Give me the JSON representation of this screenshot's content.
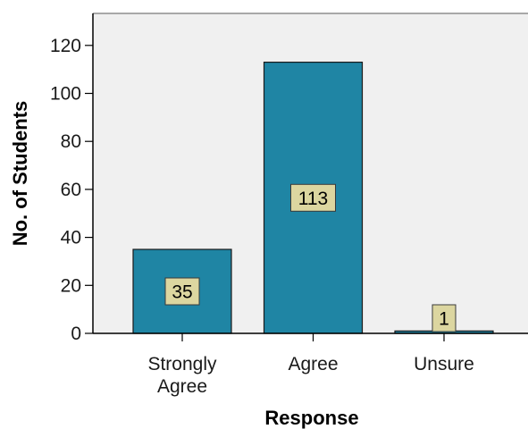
{
  "chart_data": {
    "type": "bar",
    "categories": [
      [
        "Strongly",
        "Agree"
      ],
      [
        "Agree"
      ],
      [
        "Unsure"
      ]
    ],
    "values": [
      35,
      113,
      1
    ],
    "data_labels": [
      "35",
      "113",
      "1"
    ],
    "title": "",
    "xlabel": "Response",
    "ylabel": "No. of Students",
    "ylim": [
      0,
      130
    ],
    "yticks": [
      "0",
      "20",
      "40",
      "60",
      "80",
      "100",
      "120"
    ],
    "grid": false,
    "legend": "none",
    "colors": {
      "bar_fill": "#1f85a4",
      "bar_stroke": "#1a1a1a",
      "label_fill": "#dcd6a0",
      "label_stroke": "#3a3a3a",
      "plot_background": "#f0f0f0",
      "axis": "#000000",
      "frame": "#5a5a5a"
    }
  }
}
